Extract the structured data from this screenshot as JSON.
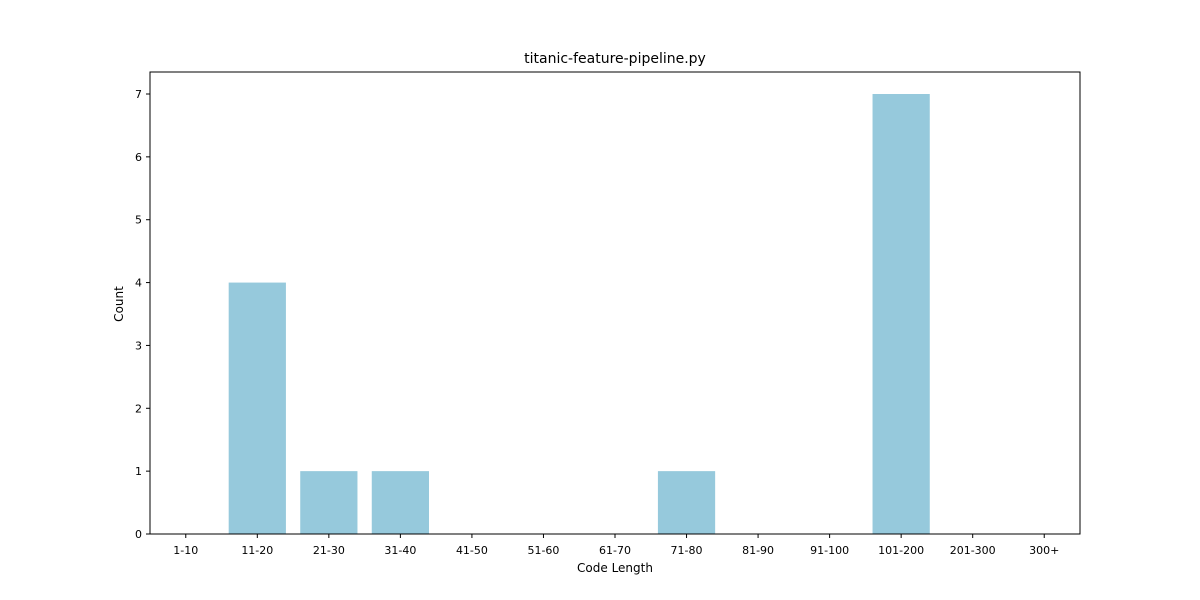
{
  "chart_data": {
    "type": "bar",
    "title": "titanic-feature-pipeline.py",
    "xlabel": "Code Length",
    "ylabel": "Count",
    "categories": [
      "1-10",
      "11-20",
      "21-30",
      "31-40",
      "41-50",
      "51-60",
      "61-70",
      "71-80",
      "81-90",
      "91-100",
      "101-200",
      "201-300",
      "300+"
    ],
    "values": [
      0,
      4,
      1,
      1,
      0,
      0,
      0,
      1,
      0,
      0,
      7,
      0,
      0
    ],
    "ylim": [
      0,
      7.35
    ],
    "yticks": [
      0,
      1,
      2,
      3,
      4,
      5,
      6,
      7
    ],
    "grid": false,
    "bar_color": "#96c9dc"
  }
}
